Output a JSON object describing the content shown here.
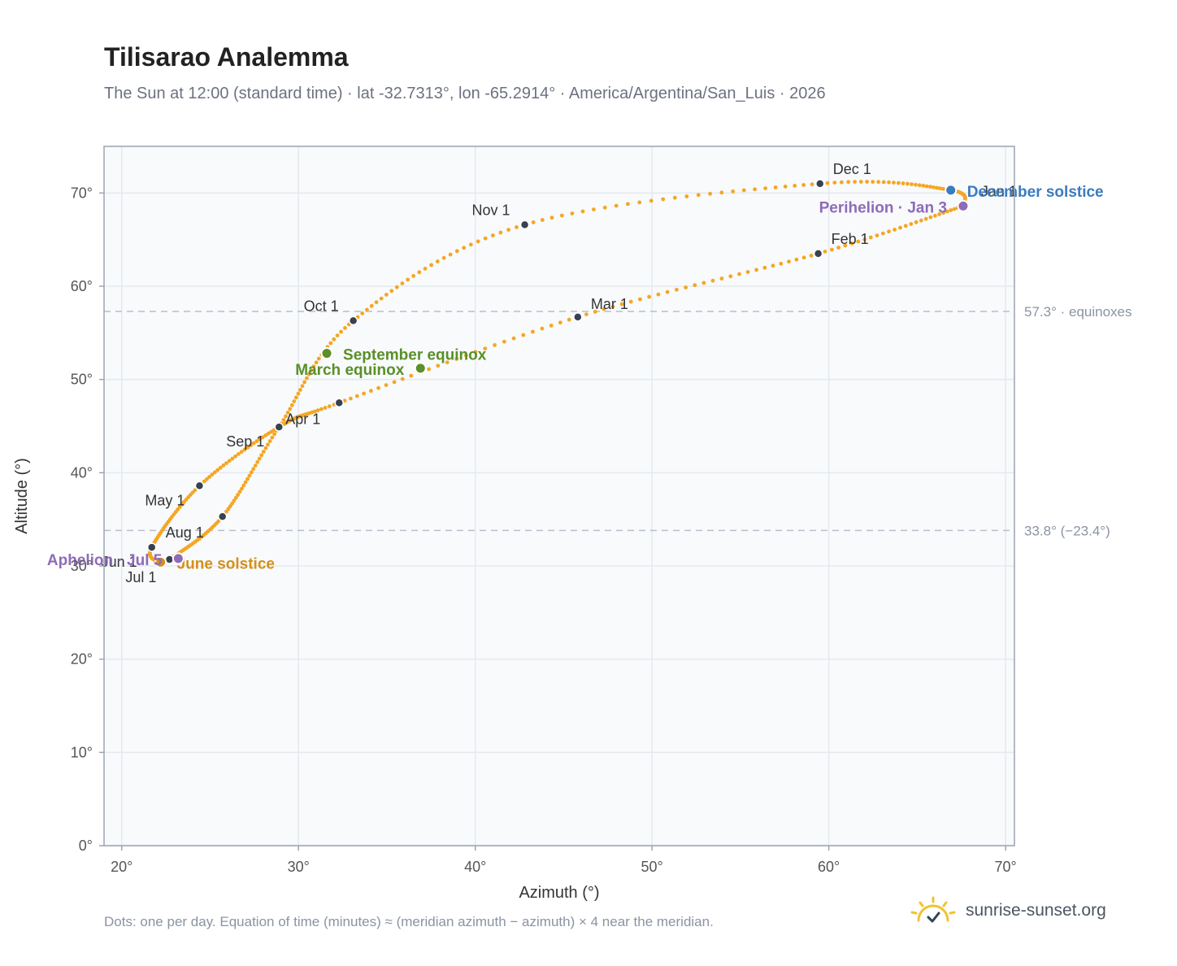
{
  "header": {
    "title": "Tilisarao Analemma",
    "subtitle": "The Sun at 12:00 (standard time) · lat -32.7313°, lon -65.2914° · America/Argentina/San_Luis · 2026"
  },
  "footer": {
    "note": "Dots: one per day. Equation of time (minutes) ≈ (meridian azimuth − azimuth) × 4 near the meridian.",
    "brand": "sunrise-sunset.org"
  },
  "colors": {
    "curve": "#f5a623",
    "month_marker": "#374151",
    "equinox": "#5a8f29",
    "june_solstice": "#d4901a",
    "december_solstice": "#3b7bbf",
    "apsis": "#8e6bb8",
    "grid": "#e5e9ef",
    "plot_bg": "#f8fafc",
    "axis_frame": "#9aa5b1",
    "reference_line": "#b8c0ca"
  },
  "chart_data": {
    "type": "scatter",
    "title": "Tilisarao Analemma",
    "xlabel": "Azimuth (°)",
    "ylabel": "Altitude (°)",
    "xlim": [
      19,
      70.5
    ],
    "ylim": [
      0,
      75
    ],
    "xticks": [
      20,
      30,
      40,
      50,
      60,
      70
    ],
    "yticks": [
      0,
      10,
      20,
      30,
      40,
      50,
      60,
      70
    ],
    "tick_suffix": "°",
    "grid": true,
    "reference_lines": [
      {
        "y": 57.3,
        "label": "57.3° · equinoxes"
      },
      {
        "y": 33.8,
        "label": "33.8° (−23.4°)"
      }
    ],
    "path_anchors": [
      [
        67.6,
        68.6
      ],
      [
        59.4,
        63.5
      ],
      [
        45.8,
        56.7
      ],
      [
        32.3,
        47.5
      ],
      [
        28.9,
        44.9
      ],
      [
        24.4,
        38.6
      ],
      [
        21.7,
        32.0
      ],
      [
        22.2,
        30.4
      ],
      [
        22.7,
        30.7
      ],
      [
        25.7,
        35.3
      ],
      [
        28.9,
        44.9
      ],
      [
        33.1,
        56.3
      ],
      [
        42.8,
        66.6
      ],
      [
        59.5,
        71.0
      ],
      [
        66.9,
        70.3
      ],
      [
        67.6,
        68.6
      ]
    ],
    "month_markers": [
      {
        "label": "Jan 1",
        "x": 67.6,
        "y": 69.3
      },
      {
        "label": "Feb 1",
        "x": 59.4,
        "y": 63.5
      },
      {
        "label": "Mar 1",
        "x": 45.8,
        "y": 56.7
      },
      {
        "label": "Apr 1",
        "x": 32.3,
        "y": 47.5
      },
      {
        "label": "May 1",
        "x": 24.4,
        "y": 38.6
      },
      {
        "label": "Jun 1",
        "x": 21.7,
        "y": 32.0
      },
      {
        "label": "Jul 1",
        "x": 22.7,
        "y": 30.7
      },
      {
        "label": "Aug 1",
        "x": 25.7,
        "y": 35.3
      },
      {
        "label": "Sep 1",
        "x": 28.9,
        "y": 44.9
      },
      {
        "label": "Oct 1",
        "x": 33.1,
        "y": 56.3
      },
      {
        "label": "Nov 1",
        "x": 42.8,
        "y": 66.6
      },
      {
        "label": "Dec 1",
        "x": 59.5,
        "y": 71.0
      }
    ],
    "events": [
      {
        "label": "March equinox",
        "x": 36.9,
        "y": 51.2,
        "color": "#5a8f29"
      },
      {
        "label": "September equinox",
        "x": 31.6,
        "y": 52.8,
        "color": "#5a8f29"
      },
      {
        "label": "June solstice",
        "x": 22.2,
        "y": 30.4,
        "color": "#d4901a"
      },
      {
        "label": "December solstice",
        "x": 66.9,
        "y": 70.3,
        "color": "#3b7bbf"
      },
      {
        "label": "Perihelion · Jan 3",
        "x": 67.6,
        "y": 68.6,
        "color": "#8e6bb8"
      },
      {
        "label": "Aphelion · Jul 5",
        "x": 23.2,
        "y": 30.8,
        "color": "#8e6bb8"
      }
    ]
  }
}
